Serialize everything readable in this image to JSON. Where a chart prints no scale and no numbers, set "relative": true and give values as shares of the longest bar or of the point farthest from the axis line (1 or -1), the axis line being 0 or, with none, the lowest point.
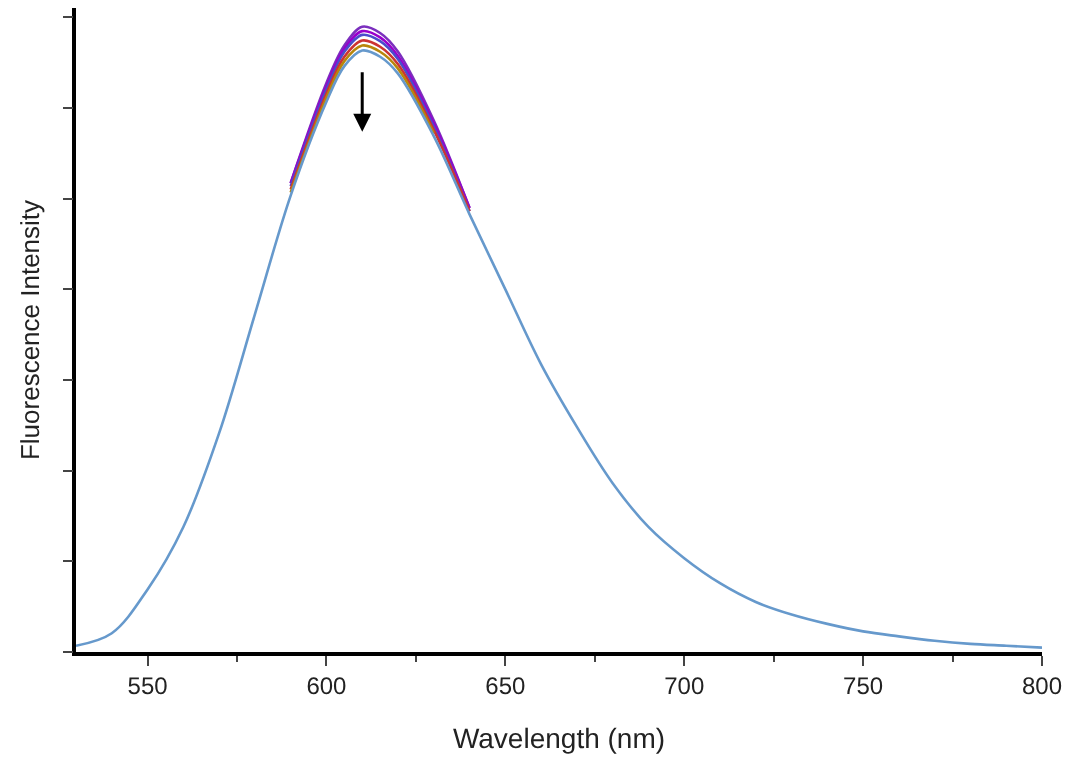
{
  "chart_data": {
    "type": "line",
    "relative": true,
    "xlabel": "Wavelength (nm)",
    "ylabel": "Fluorescence Intensity",
    "x": [
      530,
      540,
      550,
      560,
      570,
      580,
      590,
      600,
      605,
      610,
      615,
      620,
      630,
      640,
      650,
      660,
      670,
      680,
      690,
      700,
      710,
      720,
      730,
      740,
      750,
      760,
      770,
      780,
      790,
      800
    ],
    "xlim": [
      530,
      800
    ],
    "xticks": [
      550,
      600,
      650,
      700,
      750,
      800
    ],
    "marker": "none",
    "line_style": "solid",
    "series": [
      {
        "color": "#7b2fbe",
        "values": [
          null,
          null,
          null,
          null,
          null,
          null,
          0.75,
          0.91,
          0.97,
          1.0,
          0.99,
          0.96,
          0.85,
          0.71,
          null,
          null,
          null,
          null,
          null,
          null,
          null,
          null,
          null,
          null,
          null,
          null,
          null,
          null,
          null,
          null
        ]
      },
      {
        "color": "#9900cc",
        "values": [
          null,
          null,
          null,
          null,
          null,
          null,
          0.75,
          0.905,
          0.965,
          0.993,
          0.983,
          0.953,
          0.845,
          0.71,
          null,
          null,
          null,
          null,
          null,
          null,
          null,
          null,
          null,
          null,
          null,
          null,
          null,
          null,
          null,
          null
        ]
      },
      {
        "color": "#4b4bcc",
        "values": [
          null,
          null,
          null,
          null,
          null,
          null,
          0.745,
          0.9,
          0.96,
          0.987,
          0.977,
          0.948,
          0.84,
          0.705,
          null,
          null,
          null,
          null,
          null,
          null,
          null,
          null,
          null,
          null,
          null,
          null,
          null,
          null,
          null,
          null
        ]
      },
      {
        "color": "#cc3333",
        "values": [
          null,
          null,
          null,
          null,
          null,
          null,
          0.74,
          0.893,
          0.952,
          0.978,
          0.968,
          0.94,
          0.835,
          0.705,
          null,
          null,
          null,
          null,
          null,
          null,
          null,
          null,
          null,
          null,
          null,
          null,
          null,
          null,
          null,
          null
        ]
      },
      {
        "color": "#b8860b",
        "values": [
          null,
          null,
          null,
          null,
          null,
          null,
          0.735,
          0.887,
          0.945,
          0.97,
          0.96,
          0.933,
          0.83,
          null,
          null,
          null,
          null,
          null,
          null,
          null,
          null,
          null,
          null,
          null,
          null,
          null,
          null,
          null,
          null,
          null
        ]
      },
      {
        "color": "#6699cc",
        "values": [
          0.01,
          0.03,
          0.1,
          0.2,
          0.35,
          0.54,
          0.73,
          0.88,
          0.937,
          0.962,
          0.952,
          0.925,
          0.825,
          0.7,
          0.58,
          0.46,
          0.36,
          0.27,
          0.2,
          0.15,
          0.11,
          0.08,
          0.06,
          0.045,
          0.033,
          0.025,
          0.018,
          0.013,
          0.01,
          0.007
        ]
      }
    ]
  }
}
